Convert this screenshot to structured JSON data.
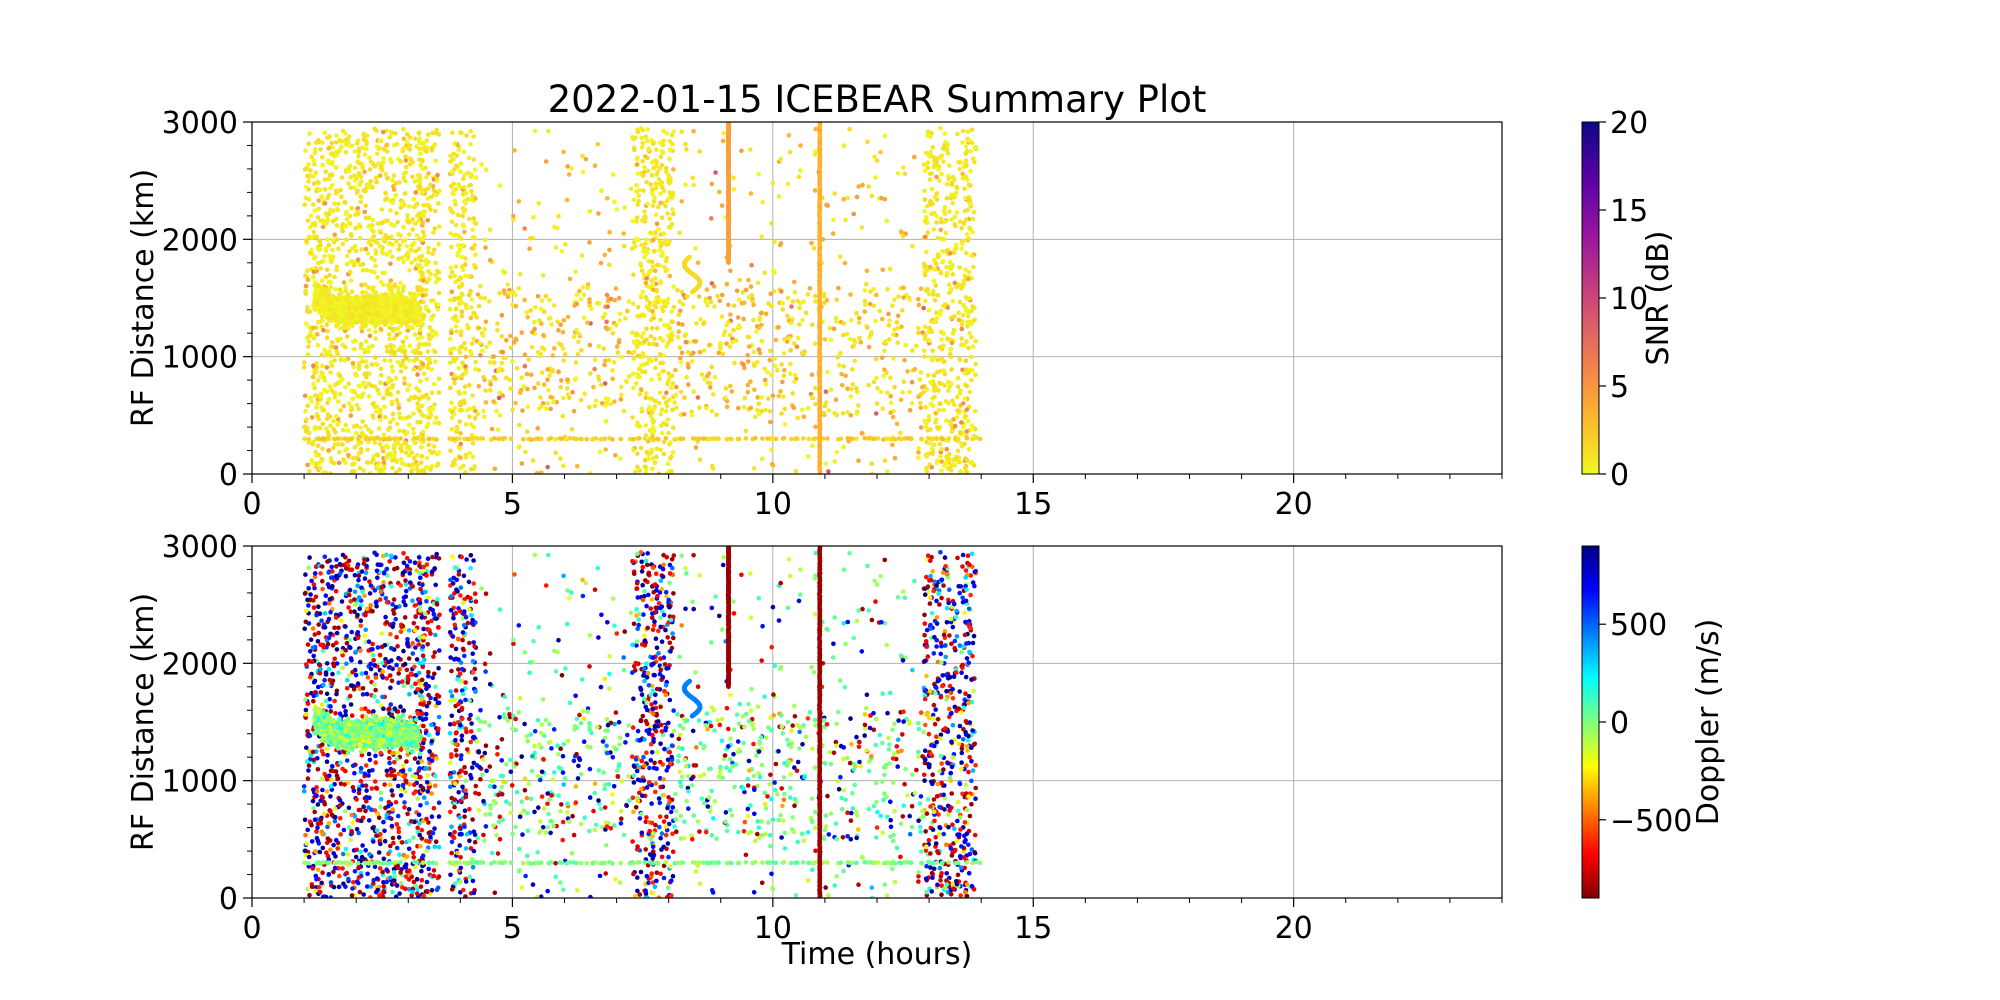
{
  "figure_title": "2022-01-15 ICEBEAR Summary Plot",
  "chart_data": [
    {
      "type": "scatter",
      "panel": "top",
      "title": "2022-01-15 ICEBEAR Summary Plot",
      "xlabel": "",
      "ylabel": "RF Distance (km)",
      "xlim": [
        0,
        24
      ],
      "ylim": [
        0,
        3000
      ],
      "xticks": [
        0,
        5,
        10,
        15,
        20
      ],
      "yticks": [
        0,
        1000,
        2000,
        3000
      ],
      "grid": true,
      "color_by": "SNR (dB)",
      "colorbar": {
        "label": "SNR (dB)",
        "colormap": "plasma_r",
        "range": [
          0,
          20
        ],
        "ticks": [
          0,
          5,
          10,
          15,
          20
        ],
        "tick_labels": [
          "0",
          "5",
          "10",
          "15",
          "20"
        ],
        "colors": [
          "#f0f921",
          "#fdb42f",
          "#ed7953",
          "#cc4778",
          "#9c179e",
          "#5c01a6",
          "#0d0887"
        ]
      }
    },
    {
      "type": "scatter",
      "panel": "bottom",
      "title": "",
      "xlabel": "Time (hours)",
      "ylabel": "RF Distance (km)",
      "xlim": [
        0,
        24
      ],
      "ylim": [
        0,
        3000
      ],
      "xticks": [
        0,
        5,
        10,
        15,
        20
      ],
      "yticks": [
        0,
        1000,
        2000,
        3000
      ],
      "grid": true,
      "color_by": "Doppler (m/s)",
      "colorbar": {
        "label": "Doppler (m/s)",
        "colormap": "jet_r",
        "range": [
          -900,
          900
        ],
        "ticks": [
          -500,
          0,
          500
        ],
        "tick_labels": [
          "−500",
          "0",
          "500"
        ],
        "colors": [
          "#800000",
          "#ff0000",
          "#ff8000",
          "#ffff00",
          "#80ff80",
          "#00ffff",
          "#0080ff",
          "#0000ff",
          "#000080"
        ]
      }
    }
  ],
  "data_extent": {
    "time_range_hours": [
      1.0,
      14.0
    ],
    "dense_bands_hours": [
      [
        1.0,
        1.3
      ],
      [
        1.3,
        3.3
      ],
      [
        3.2,
        3.6
      ],
      [
        3.8,
        4.3
      ],
      [
        7.3,
        8.1
      ],
      [
        12.9,
        13.9
      ]
    ],
    "sparse_ranges_hours": [
      [
        4.3,
        7.3
      ],
      [
        8.1,
        12.9
      ]
    ],
    "cluster": {
      "time_hours": [
        1.2,
        3.2
      ],
      "range_km": [
        1200,
        1600
      ],
      "doppler_ms": 0
    },
    "streaks": [
      {
        "time_hours": 9.15,
        "range_km": [
          1800,
          3000
        ],
        "snr_db": 4,
        "doppler_ms": -850
      },
      {
        "time_hours": 10.9,
        "range_km": [
          0,
          3000
        ],
        "snr_db": 3,
        "doppler_ms": -850
      },
      {
        "time_hours": [
          8.3,
          8.6
        ],
        "range_km": [
          1550,
          1850
        ],
        "snr_db": 1,
        "doppler_ms": 450
      }
    ],
    "range_band_km": 300
  }
}
